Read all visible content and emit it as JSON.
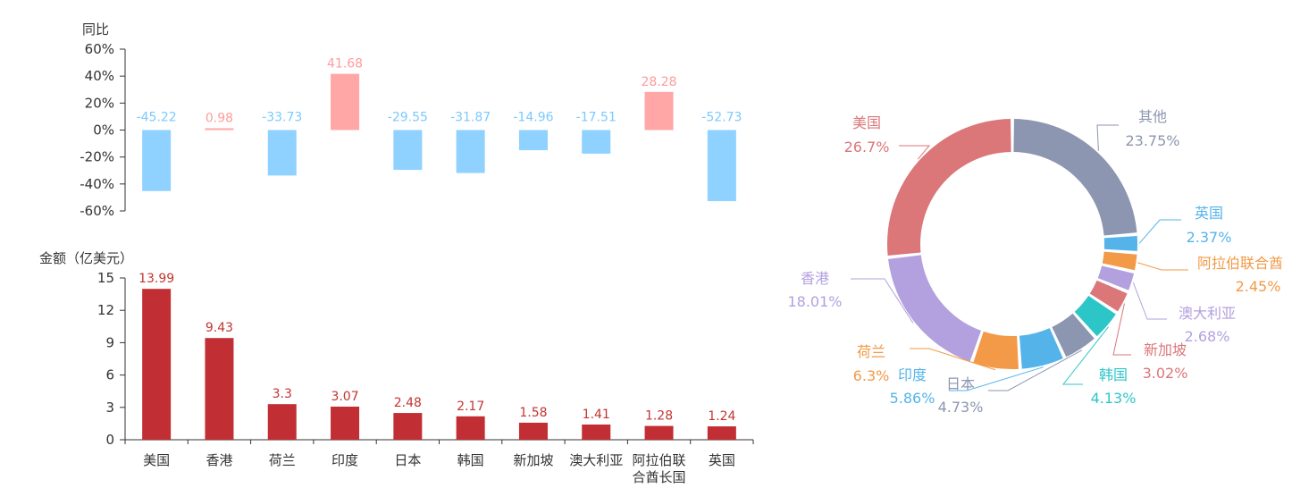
{
  "colors": {
    "positive_bar": "#ffa6a6",
    "negative_bar": "#8fd1ff",
    "positive_text": "#ff9c9c",
    "negative_text": "#7cc9ff",
    "amount_bar": "#c12e34",
    "amount_text": "#c12e34",
    "axis": "#333333"
  },
  "chart_data": [
    {
      "type": "bar",
      "title": "",
      "ylabel": "同比",
      "ylim": [
        -60,
        60
      ],
      "yticks": [
        "60%",
        "40%",
        "20%",
        "0%",
        "-20%",
        "-40%",
        "-60%"
      ],
      "categories": [
        "美国",
        "香港",
        "荷兰",
        "印度",
        "日本",
        "韩国",
        "新加坡",
        "澳大利亚",
        "阿拉伯联合酋长国",
        "英国"
      ],
      "values": [
        -45.22,
        0.98,
        -33.73,
        41.68,
        -29.55,
        -31.87,
        -14.96,
        -17.51,
        28.28,
        -52.73
      ],
      "value_labels": [
        "-45.22",
        "0.98",
        "-33.73",
        "41.68",
        "-29.55",
        "-31.87",
        "-14.96",
        "-17.51",
        "28.28",
        "-52.73"
      ]
    },
    {
      "type": "bar",
      "title": "",
      "ylabel": "金额（亿美元）",
      "ylim": [
        0,
        15
      ],
      "yticks": [
        "15",
        "12",
        "9",
        "6",
        "3",
        "0"
      ],
      "categories": [
        "美国",
        "香港",
        "荷兰",
        "印度",
        "日本",
        "韩国",
        "新加坡",
        "澳大利亚",
        "阿拉伯联合酋长国",
        "英国"
      ],
      "x_tick_labels": [
        "美国",
        "香港",
        "荷兰",
        "印度",
        "日本",
        "韩国",
        "新加坡",
        "澳大利亚",
        "阿拉伯联\n合酋长国",
        "英国"
      ],
      "values": [
        13.99,
        9.43,
        3.3,
        3.07,
        2.48,
        2.17,
        1.58,
        1.41,
        1.28,
        1.24
      ],
      "value_labels": [
        "13.99",
        "9.43",
        "3.3",
        "3.07",
        "2.48",
        "2.17",
        "1.58",
        "1.41",
        "1.28",
        "1.24"
      ]
    },
    {
      "type": "pie",
      "donut": true,
      "title": "",
      "slices": [
        {
          "name": "其他",
          "value": 23.75,
          "label": "23.75%",
          "color": "#8c96b0"
        },
        {
          "name": "英国",
          "value": 2.37,
          "label": "2.37%",
          "color": "#54b4ea"
        },
        {
          "name": "阿拉伯联合酋",
          "value": 2.45,
          "label": "2.45%",
          "color": "#f29a47"
        },
        {
          "name": "澳大利亚",
          "value": 2.68,
          "label": "2.68%",
          "color": "#b3a0df"
        },
        {
          "name": "新加坡",
          "value": 3.02,
          "label": "3.02%",
          "color": "#db7679"
        },
        {
          "name": "韩国",
          "value": 4.13,
          "label": "4.13%",
          "color": "#2dc6c8"
        },
        {
          "name": "日本",
          "value": 4.73,
          "label": "4.73%",
          "color": "#8c96b0"
        },
        {
          "name": "印度",
          "value": 5.86,
          "label": "5.86%",
          "color": "#54b4ea"
        },
        {
          "name": "荷兰",
          "value": 6.3,
          "label": "6.3%",
          "color": "#f29a47"
        },
        {
          "name": "香港",
          "value": 18.01,
          "label": "18.01%",
          "color": "#b3a0df"
        },
        {
          "name": "美国",
          "value": 26.7,
          "label": "26.7%",
          "color": "#db7679"
        }
      ]
    }
  ]
}
